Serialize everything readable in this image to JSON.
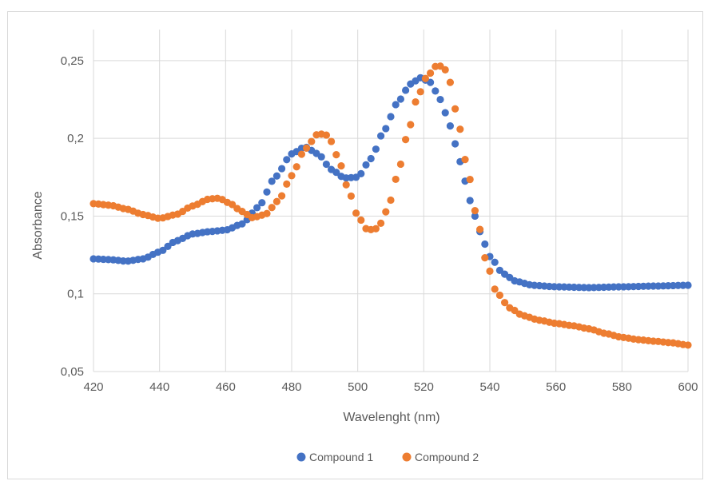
{
  "colors": {
    "compound1": "#4472C4",
    "compound2": "#ED7D31",
    "grid": "#d9d9d9",
    "text": "#595959"
  },
  "chart_data": {
    "type": "scatter",
    "title": "",
    "xlabel": "Wavelenght (nm)",
    "ylabel": "Absorbance",
    "xlim": [
      420,
      600
    ],
    "ylim": [
      0.05,
      0.27
    ],
    "x_ticks": [
      420,
      440,
      460,
      480,
      500,
      520,
      540,
      560,
      580,
      600
    ],
    "x_tick_labels": [
      "420",
      "440",
      "460",
      "480",
      "500",
      "520",
      "540",
      "560",
      "580",
      "600"
    ],
    "y_ticks": [
      0.05,
      0.1,
      0.15,
      0.2,
      0.25
    ],
    "y_tick_labels": [
      "0,05",
      "0,1",
      "0,15",
      "0,2",
      "0,25"
    ],
    "grid": true,
    "legend_position": "bottom",
    "x_step": 1.5,
    "series": [
      {
        "name": "Compound 1",
        "color": "#4472C4",
        "points": [
          [
            420,
            0.1225
          ],
          [
            425,
            0.122
          ],
          [
            430,
            0.121
          ],
          [
            435,
            0.1225
          ],
          [
            440,
            0.127
          ],
          [
            445,
            0.134
          ],
          [
            450,
            0.1385
          ],
          [
            455,
            0.14
          ],
          [
            460,
            0.141
          ],
          [
            465,
            0.145
          ],
          [
            470,
            0.156
          ],
          [
            475,
            0.175
          ],
          [
            480,
            0.19
          ],
          [
            484,
            0.1945
          ],
          [
            488,
            0.19
          ],
          [
            492,
            0.18
          ],
          [
            496,
            0.1745
          ],
          [
            500,
            0.175
          ],
          [
            504,
            0.187
          ],
          [
            508,
            0.205
          ],
          [
            512,
            0.223
          ],
          [
            516,
            0.235
          ],
          [
            519,
            0.239
          ],
          [
            522,
            0.236
          ],
          [
            525,
            0.225
          ],
          [
            528,
            0.208
          ],
          [
            531,
            0.185
          ],
          [
            534,
            0.16
          ],
          [
            537,
            0.14
          ],
          [
            540,
            0.124
          ],
          [
            544,
            0.113
          ],
          [
            548,
            0.108
          ],
          [
            553,
            0.1055
          ],
          [
            560,
            0.1045
          ],
          [
            570,
            0.104
          ],
          [
            580,
            0.1045
          ],
          [
            590,
            0.105
          ],
          [
            600,
            0.1055
          ]
        ]
      },
      {
        "name": "Compound 2",
        "color": "#ED7D31",
        "points": [
          [
            420,
            0.158
          ],
          [
            425,
            0.157
          ],
          [
            430,
            0.1545
          ],
          [
            435,
            0.151
          ],
          [
            440,
            0.1485
          ],
          [
            445,
            0.151
          ],
          [
            450,
            0.1565
          ],
          [
            455,
            0.161
          ],
          [
            458,
            0.1615
          ],
          [
            461,
            0.1585
          ],
          [
            465,
            0.153
          ],
          [
            468,
            0.149
          ],
          [
            472,
            0.151
          ],
          [
            476,
            0.16
          ],
          [
            480,
            0.176
          ],
          [
            484,
            0.193
          ],
          [
            488,
            0.203
          ],
          [
            491,
            0.202
          ],
          [
            494,
            0.188
          ],
          [
            497,
            0.168
          ],
          [
            500,
            0.15
          ],
          [
            503,
            0.141
          ],
          [
            506,
            0.142
          ],
          [
            509,
            0.154
          ],
          [
            512,
            0.176
          ],
          [
            515,
            0.202
          ],
          [
            518,
            0.226
          ],
          [
            521,
            0.24
          ],
          [
            524,
            0.247
          ],
          [
            526,
            0.246
          ],
          [
            528,
            0.236
          ],
          [
            530,
            0.215
          ],
          [
            533,
            0.183
          ],
          [
            536,
            0.15
          ],
          [
            539,
            0.12
          ],
          [
            542,
            0.101
          ],
          [
            546,
            0.091
          ],
          [
            550,
            0.086
          ],
          [
            555,
            0.083
          ],
          [
            560,
            0.081
          ],
          [
            565,
            0.0795
          ],
          [
            570,
            0.0775
          ],
          [
            575,
            0.0745
          ],
          [
            580,
            0.072
          ],
          [
            585,
            0.0705
          ],
          [
            590,
            0.0695
          ],
          [
            595,
            0.0685
          ],
          [
            600,
            0.067
          ]
        ]
      }
    ]
  }
}
